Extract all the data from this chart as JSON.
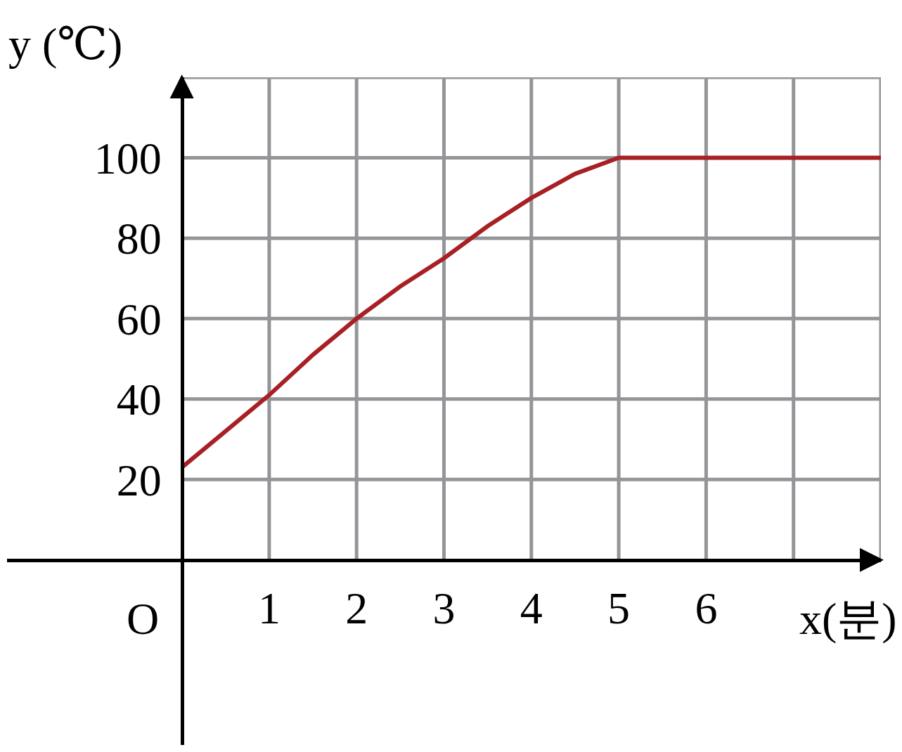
{
  "chart_data": {
    "type": "line",
    "xlabel": "x(분)",
    "ylabel": "y (℃)",
    "x": [
      0,
      0.5,
      1,
      1.5,
      2,
      2.5,
      3,
      3.5,
      4,
      4.5,
      5,
      6,
      7,
      8
    ],
    "series": [
      {
        "color": "#a81f24",
        "values": [
          23,
          32,
          41,
          51,
          60,
          68,
          75,
          83,
          90,
          96,
          100,
          100,
          100,
          100
        ]
      }
    ],
    "xlim": [
      -2,
      8
    ],
    "ylim": [
      -46,
      120
    ],
    "xticks": [
      1,
      2,
      3,
      4,
      5,
      6,
      {
        "value": 7,
        "label": null
      },
      {
        "value": 8,
        "label": null
      }
    ],
    "yticks": [
      20,
      40,
      60,
      80,
      100,
      {
        "value": 120,
        "label": null
      }
    ],
    "annotations": [
      "O"
    ],
    "grid": true,
    "marker": "none",
    "line_style": "solid"
  }
}
